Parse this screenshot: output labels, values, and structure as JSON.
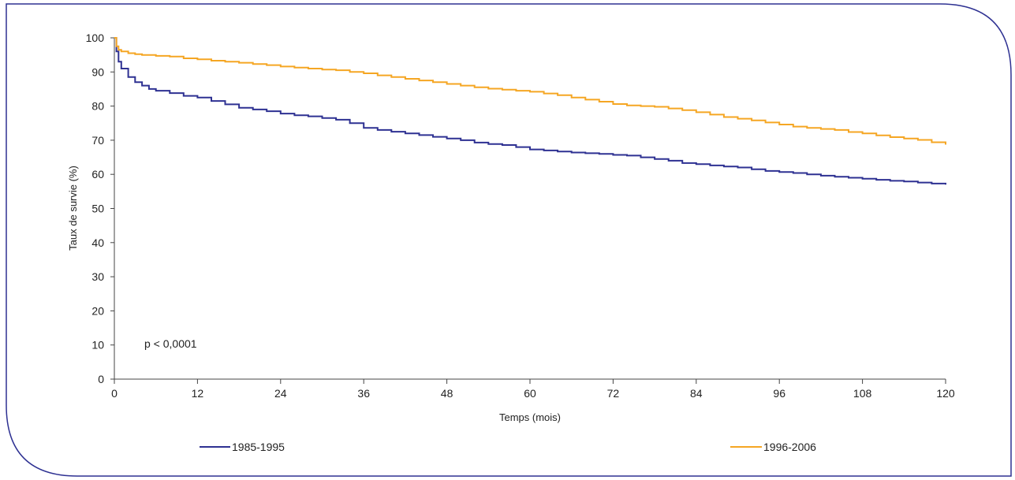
{
  "chart_data": {
    "type": "line",
    "title": "",
    "xlabel": "Temps (mois)",
    "ylabel": "Taux de survie (%)",
    "xlim": [
      0,
      120
    ],
    "ylim": [
      0,
      100
    ],
    "xticks": [
      0,
      12,
      24,
      36,
      48,
      60,
      72,
      84,
      96,
      108,
      120
    ],
    "yticks": [
      0,
      10,
      20,
      30,
      40,
      50,
      60,
      70,
      80,
      90,
      100
    ],
    "grid": false,
    "legend_position": "bottom",
    "annotation": "p < 0,0001",
    "series": [
      {
        "name": "1985-1995",
        "color": "#2e3192",
        "points": [
          [
            0,
            100
          ],
          [
            0.3,
            96
          ],
          [
            0.6,
            93
          ],
          [
            1,
            91
          ],
          [
            2,
            88.5
          ],
          [
            3,
            87
          ],
          [
            4,
            86
          ],
          [
            5,
            85
          ],
          [
            6,
            84.5
          ],
          [
            8,
            83.8
          ],
          [
            10,
            83
          ],
          [
            12,
            82.5
          ],
          [
            14,
            81.5
          ],
          [
            16,
            80.5
          ],
          [
            18,
            79.5
          ],
          [
            20,
            79
          ],
          [
            22,
            78.5
          ],
          [
            24,
            77.8
          ],
          [
            26,
            77.3
          ],
          [
            28,
            77
          ],
          [
            30,
            76.5
          ],
          [
            32,
            76
          ],
          [
            34,
            75
          ],
          [
            36,
            73.6
          ],
          [
            38,
            73
          ],
          [
            40,
            72.5
          ],
          [
            42,
            72
          ],
          [
            44,
            71.5
          ],
          [
            46,
            71
          ],
          [
            48,
            70.5
          ],
          [
            50,
            70
          ],
          [
            52,
            69.3
          ],
          [
            54,
            68.9
          ],
          [
            56,
            68.6
          ],
          [
            58,
            68
          ],
          [
            60,
            67.3
          ],
          [
            62,
            67
          ],
          [
            64,
            66.7
          ],
          [
            66,
            66.4
          ],
          [
            68,
            66.2
          ],
          [
            70,
            66
          ],
          [
            72,
            65.7
          ],
          [
            74,
            65.5
          ],
          [
            76,
            65
          ],
          [
            78,
            64.5
          ],
          [
            80,
            64
          ],
          [
            82,
            63.3
          ],
          [
            84,
            63
          ],
          [
            86,
            62.6
          ],
          [
            88,
            62.3
          ],
          [
            90,
            62
          ],
          [
            92,
            61.5
          ],
          [
            94,
            61
          ],
          [
            96,
            60.7
          ],
          [
            98,
            60.4
          ],
          [
            100,
            60
          ],
          [
            102,
            59.6
          ],
          [
            104,
            59.3
          ],
          [
            106,
            59
          ],
          [
            108,
            58.7
          ],
          [
            110,
            58.4
          ],
          [
            112,
            58.1
          ],
          [
            114,
            57.9
          ],
          [
            116,
            57.6
          ],
          [
            118,
            57.3
          ],
          [
            120,
            57
          ]
        ]
      },
      {
        "name": "1996-2006",
        "color": "#f5a623",
        "points": [
          [
            0,
            100
          ],
          [
            0.3,
            97.5
          ],
          [
            0.6,
            96.5
          ],
          [
            1,
            96
          ],
          [
            2,
            95.5
          ],
          [
            3,
            95.2
          ],
          [
            4,
            95
          ],
          [
            6,
            94.7
          ],
          [
            8,
            94.5
          ],
          [
            10,
            94
          ],
          [
            12,
            93.7
          ],
          [
            14,
            93.3
          ],
          [
            16,
            93
          ],
          [
            18,
            92.7
          ],
          [
            20,
            92.3
          ],
          [
            22,
            92
          ],
          [
            24,
            91.6
          ],
          [
            26,
            91.3
          ],
          [
            28,
            91
          ],
          [
            30,
            90.7
          ],
          [
            32,
            90.5
          ],
          [
            34,
            90
          ],
          [
            36,
            89.6
          ],
          [
            38,
            89
          ],
          [
            40,
            88.5
          ],
          [
            42,
            88
          ],
          [
            44,
            87.5
          ],
          [
            46,
            87
          ],
          [
            48,
            86.5
          ],
          [
            50,
            86
          ],
          [
            52,
            85.5
          ],
          [
            54,
            85.1
          ],
          [
            56,
            84.8
          ],
          [
            58,
            84.5
          ],
          [
            60,
            84.2
          ],
          [
            62,
            83.7
          ],
          [
            64,
            83.2
          ],
          [
            66,
            82.5
          ],
          [
            68,
            81.9
          ],
          [
            70,
            81.3
          ],
          [
            72,
            80.6
          ],
          [
            74,
            80.2
          ],
          [
            76,
            80
          ],
          [
            78,
            79.8
          ],
          [
            80,
            79.3
          ],
          [
            82,
            78.8
          ],
          [
            84,
            78.2
          ],
          [
            86,
            77.5
          ],
          [
            88,
            76.8
          ],
          [
            90,
            76.3
          ],
          [
            92,
            75.8
          ],
          [
            94,
            75.2
          ],
          [
            96,
            74.6
          ],
          [
            98,
            74
          ],
          [
            100,
            73.6
          ],
          [
            102,
            73.3
          ],
          [
            104,
            73
          ],
          [
            106,
            72.4
          ],
          [
            108,
            72
          ],
          [
            110,
            71.4
          ],
          [
            112,
            70.9
          ],
          [
            114,
            70.5
          ],
          [
            116,
            70.1
          ],
          [
            118,
            69.4
          ],
          [
            120,
            68.7
          ]
        ]
      }
    ]
  }
}
